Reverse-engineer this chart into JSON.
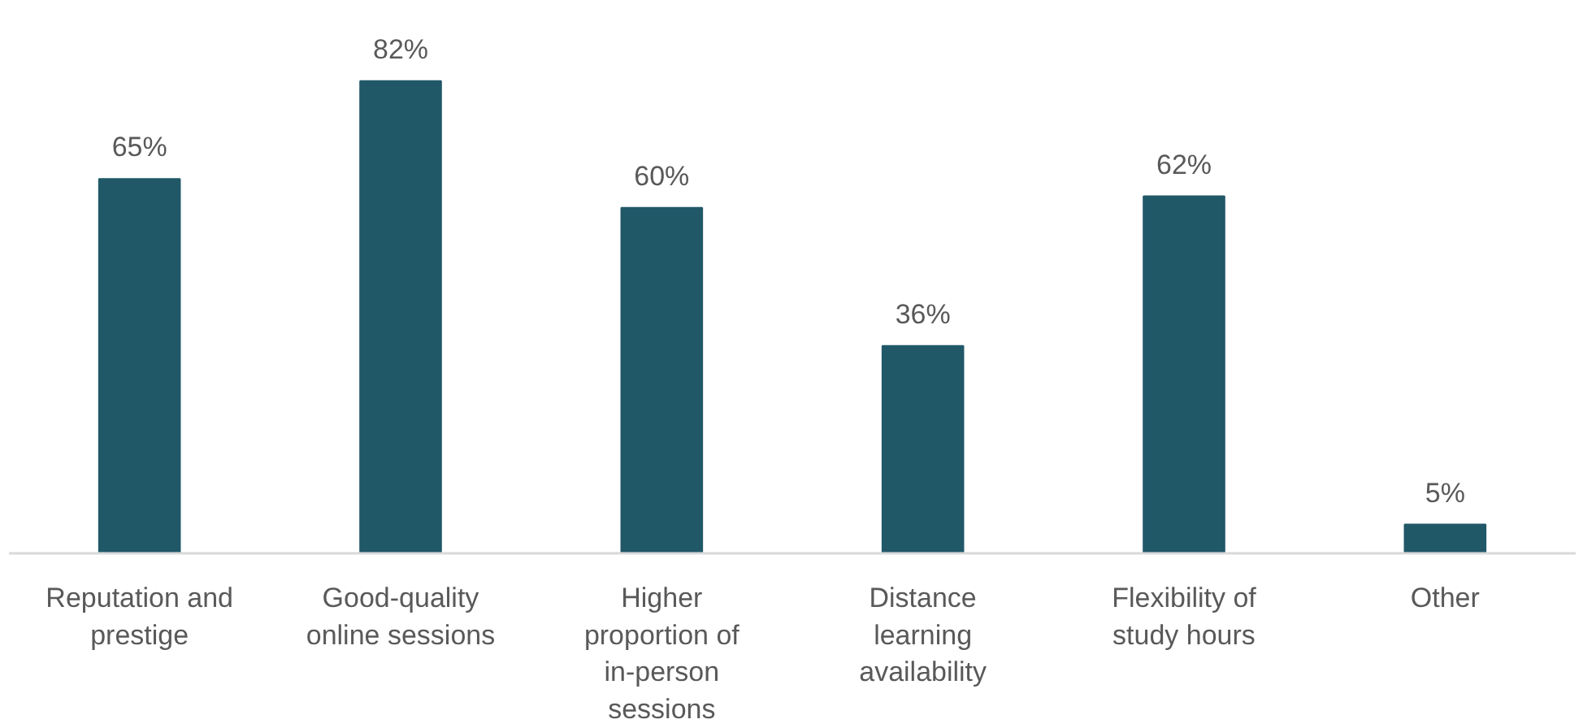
{
  "chart_data": {
    "type": "bar",
    "categories": [
      "Reputation and prestige",
      "Good-quality online sessions",
      "Higher proportion of in-person sessions",
      "Distance learning availability",
      "Flexibility of study hours",
      "Other"
    ],
    "values": [
      65,
      82,
      60,
      36,
      62,
      5
    ],
    "value_labels": [
      "65%",
      "82%",
      "60%",
      "36%",
      "62%",
      "5%"
    ],
    "color": "#215868",
    "grid": false
  }
}
